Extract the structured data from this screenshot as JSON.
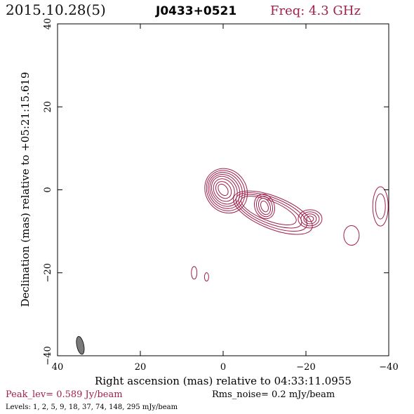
{
  "header": {
    "date": "2015.10.28(5)",
    "source": "J0433+0521",
    "freq": "Freq: 4.3 GHz"
  },
  "colors": {
    "contour": "#a0204a",
    "frame": "#000000",
    "beam_fill": "#7a7a7a"
  },
  "chart_data": {
    "type": "contour",
    "xlabel": "Right ascension (mas) relative to 04:33:11.0955",
    "ylabel": "Declination (mas) relative to +05:21:15.619",
    "xlim": [
      40,
      -40
    ],
    "ylim": [
      -40,
      40
    ],
    "xticks": [
      40,
      20,
      0,
      -20,
      -40
    ],
    "yticks": [
      -40,
      -20,
      0,
      20,
      40
    ],
    "xtick_labels": [
      "40",
      "20",
      "0",
      "−20",
      "−40"
    ],
    "ytick_labels": [
      "−40",
      "−20",
      "0",
      "20",
      "40"
    ],
    "peak_level": "Peak_lev=  0.589 Jy/beam",
    "rms_noise": "Rms_noise=  0.2 mJy/beam",
    "levels_text": "Levels:   1,   2,   5,   9,  18,  37,  74, 148, 295 mJy/beam",
    "levels_mJy": [
      1,
      2,
      5,
      9,
      18,
      37,
      74,
      148,
      295
    ],
    "core": {
      "x": 0.0,
      "y": 0.0
    },
    "components": [
      {
        "x": 0,
        "y": 0
      },
      {
        "x": -10,
        "y": -4
      },
      {
        "x": -21,
        "y": -7
      },
      {
        "x": -31,
        "y": -11
      },
      {
        "x": -38,
        "y": -4
      },
      {
        "x": 7,
        "y": -20
      },
      {
        "x": 4,
        "y": -21
      }
    ],
    "beam": {
      "x": 34.5,
      "y": -37.5
    }
  }
}
